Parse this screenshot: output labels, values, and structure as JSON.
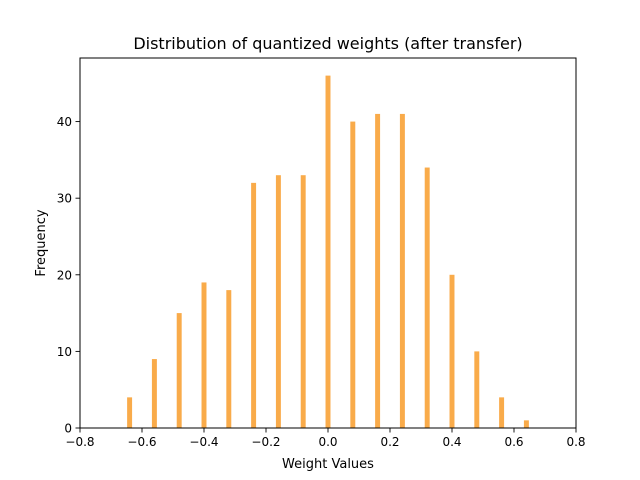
{
  "chart_data": {
    "type": "bar",
    "title": "Distribution of quantized weights (after transfer)",
    "xlabel": "Weight Values",
    "ylabel": "Frequency",
    "xlim": [
      -0.8,
      0.8
    ],
    "ylim": [
      0,
      48.3
    ],
    "xticks": [
      "−0.8",
      "−0.6",
      "−0.4",
      "−0.2",
      "0.0",
      "0.2",
      "0.4",
      "0.6",
      "0.8"
    ],
    "xtick_values": [
      -0.8,
      -0.6,
      -0.4,
      -0.2,
      0.0,
      0.2,
      0.4,
      0.6,
      0.8
    ],
    "yticks": [
      "0",
      "10",
      "20",
      "30",
      "40"
    ],
    "ytick_values": [
      0,
      10,
      20,
      30,
      40
    ],
    "bar_color": "#f9a640",
    "bar_width": 0.016,
    "x": [
      -0.64,
      -0.56,
      -0.48,
      -0.4,
      -0.32,
      -0.24,
      -0.16,
      -0.08,
      0.0,
      0.08,
      0.16,
      0.24,
      0.32,
      0.4,
      0.48,
      0.56,
      0.64
    ],
    "values": [
      4,
      9,
      15,
      19,
      18,
      32,
      33,
      33,
      46,
      40,
      41,
      41,
      34,
      20,
      10,
      4,
      1
    ],
    "grid": false,
    "legend": "none"
  }
}
